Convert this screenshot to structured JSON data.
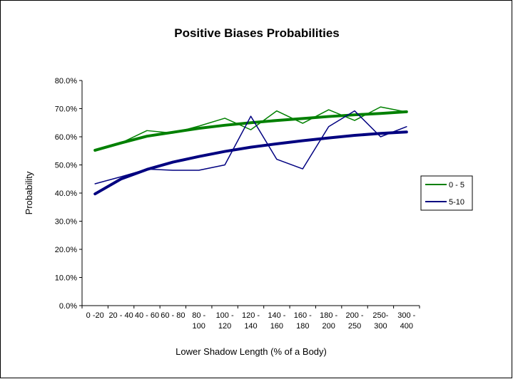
{
  "chart_data": {
    "type": "line",
    "title": "Positive Biases Probabilities",
    "x_label": "Lower Shadow Length (% of a Body)",
    "y_label": "Probability",
    "categories": [
      "0 -20",
      "20 - 40",
      "40 - 60",
      "60 - 80",
      "80 - 100",
      "100 - 120",
      "120 - 140",
      "140 - 160",
      "160 - 180",
      "180 - 200",
      "200 - 250",
      "250- 300",
      "300 - 400"
    ],
    "series": [
      {
        "name": "0 - 5",
        "color": "#008000",
        "values": [
          55.3,
          57.8,
          62.2,
          61.3,
          63.8,
          66.6,
          62.5,
          69.2,
          64.8,
          69.6,
          65.8,
          70.6,
          68.8
        ]
      },
      {
        "name": "5-10",
        "color": "#000080",
        "values": [
          43.3,
          45.8,
          48.5,
          48.1,
          48.1,
          50.0,
          67.3,
          52.0,
          48.6,
          63.6,
          69.2,
          60.0,
          63.6
        ]
      }
    ],
    "trendlines": [
      {
        "color": "#008000",
        "values": [
          55.2,
          57.8,
          60.2,
          61.6,
          63.0,
          64.1,
          65.0,
          65.8,
          66.5,
          67.2,
          67.8,
          68.3,
          68.9
        ]
      },
      {
        "color": "#000080",
        "values": [
          39.7,
          45.0,
          48.4,
          51.0,
          53.0,
          54.8,
          56.3,
          57.5,
          58.6,
          59.6,
          60.5,
          61.2,
          61.7
        ]
      }
    ],
    "ylim": [
      0,
      80
    ],
    "yticks": [
      {
        "value": 0,
        "label": "0.0%"
      },
      {
        "value": 10,
        "label": "10.0%"
      },
      {
        "value": 20,
        "label": "20.0%"
      },
      {
        "value": 30,
        "label": "30.0%"
      },
      {
        "value": 40,
        "label": "40.0%"
      },
      {
        "value": 50,
        "label": "50.0%"
      },
      {
        "value": 60,
        "label": "60.0%"
      },
      {
        "value": 70,
        "label": "70.0%"
      },
      {
        "value": 80,
        "label": "80.0%"
      }
    ]
  }
}
